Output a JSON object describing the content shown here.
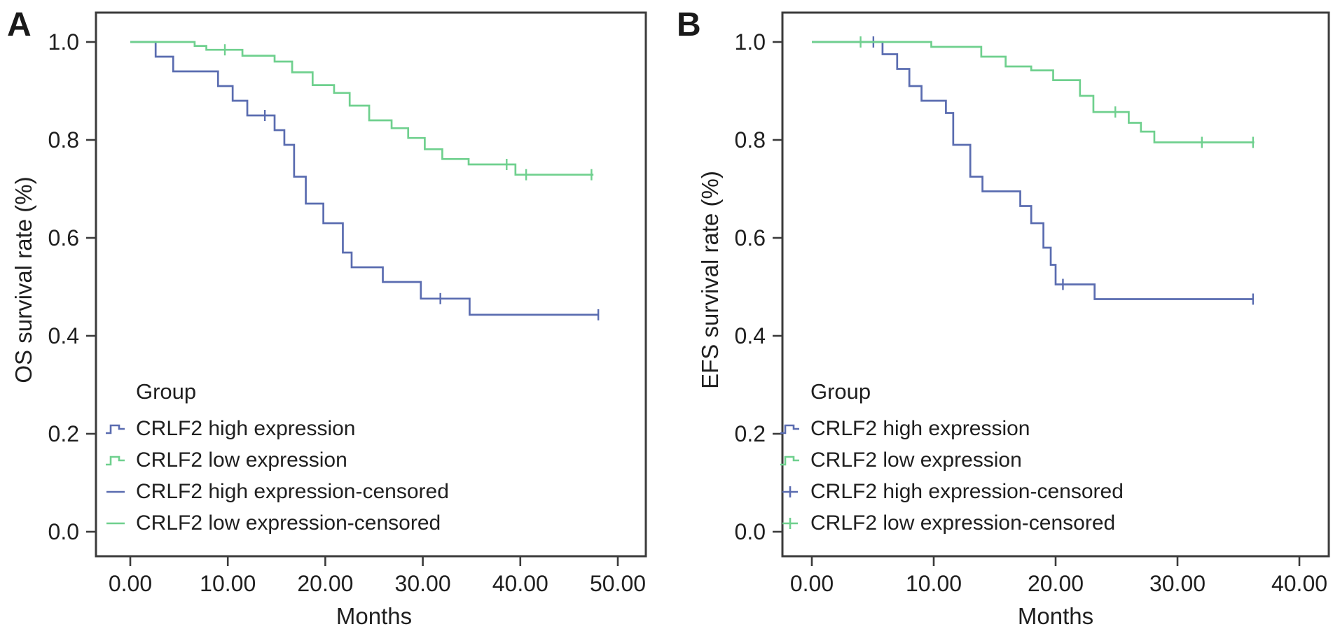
{
  "colors": {
    "high": "#5a6cb0",
    "low": "#6fd08e",
    "frame": "#3b3b3b",
    "text": "#1f1f1f"
  },
  "chart_data": [
    {
      "type": "step",
      "panel_label": "A",
      "xlabel": "Months",
      "ylabel": "OS survival rate (%)",
      "xlim": [
        0,
        50
      ],
      "ylim": [
        0.0,
        1.0
      ],
      "grid": false,
      "legend_position": "lower-left-inside",
      "xticks": [
        {
          "v": 0,
          "label": "0.00"
        },
        {
          "v": 10,
          "label": "10.00"
        },
        {
          "v": 20,
          "label": "20.00"
        },
        {
          "v": 30,
          "label": "30.00"
        },
        {
          "v": 40,
          "label": "40.00"
        },
        {
          "v": 50,
          "label": "50.00"
        }
      ],
      "yticks": [
        {
          "v": 1.0,
          "label": "1.0"
        },
        {
          "v": 0.8,
          "label": "0.8"
        },
        {
          "v": 0.6,
          "label": "0.6"
        },
        {
          "v": 0.4,
          "label": "0.4"
        },
        {
          "v": 0.2,
          "label": "0.2"
        },
        {
          "v": 0.0,
          "label": "0.0"
        }
      ],
      "legend": {
        "title": "Group",
        "entries": [
          {
            "label": "CRLF2 high expression",
            "color_key": "high",
            "symbol": "step"
          },
          {
            "label": "CRLF2 low expression",
            "color_key": "low",
            "symbol": "step"
          },
          {
            "label": "CRLF2 high expression-censored",
            "color_key": "high",
            "symbol": "line"
          },
          {
            "label": "CRLF2 low expression-censored",
            "color_key": "low",
            "symbol": "line"
          }
        ]
      },
      "series": [
        {
          "name": "CRLF2 high expression",
          "color_key": "high",
          "points": [
            [
              0,
              1.0
            ],
            [
              2.6,
              0.97
            ],
            [
              4.4,
              0.94
            ],
            [
              9.0,
              0.91
            ],
            [
              10.5,
              0.88
            ],
            [
              12.0,
              0.85
            ],
            [
              14.8,
              0.82
            ],
            [
              15.8,
              0.79
            ],
            [
              16.8,
              0.725
            ],
            [
              18.0,
              0.67
            ],
            [
              19.8,
              0.63
            ],
            [
              21.8,
              0.57
            ],
            [
              22.7,
              0.54
            ],
            [
              25.9,
              0.51
            ],
            [
              29.8,
              0.476
            ],
            [
              34.8,
              0.443
            ],
            [
              48.0,
              0.443
            ]
          ],
          "censored": [
            [
              13.8,
              0.85
            ],
            [
              31.8,
              0.476
            ],
            [
              48.0,
              0.443
            ]
          ]
        },
        {
          "name": "CRLF2 low expression",
          "color_key": "low",
          "points": [
            [
              0,
              1.0
            ],
            [
              6.6,
              0.992
            ],
            [
              7.8,
              0.984
            ],
            [
              11.5,
              0.972
            ],
            [
              14.8,
              0.96
            ],
            [
              16.6,
              0.938
            ],
            [
              18.7,
              0.912
            ],
            [
              20.9,
              0.896
            ],
            [
              22.5,
              0.87
            ],
            [
              24.5,
              0.84
            ],
            [
              26.8,
              0.824
            ],
            [
              28.5,
              0.804
            ],
            [
              30.2,
              0.781
            ],
            [
              32.0,
              0.761
            ],
            [
              34.7,
              0.75
            ],
            [
              39.5,
              0.729
            ],
            [
              47.5,
              0.729
            ]
          ],
          "censored": [
            [
              9.7,
              0.984
            ],
            [
              38.6,
              0.75
            ],
            [
              40.6,
              0.729
            ],
            [
              47.3,
              0.729
            ]
          ]
        }
      ]
    },
    {
      "type": "step",
      "panel_label": "B",
      "xlabel": "Months",
      "ylabel": "EFS survival rate (%)",
      "xlim": [
        0,
        40
      ],
      "ylim": [
        0.0,
        1.0
      ],
      "grid": false,
      "legend_position": "lower-left-inside",
      "xticks": [
        {
          "v": 0,
          "label": "0.00"
        },
        {
          "v": 10,
          "label": "10.00"
        },
        {
          "v": 20,
          "label": "20.00"
        },
        {
          "v": 30,
          "label": "30.00"
        },
        {
          "v": 40,
          "label": "40.00"
        }
      ],
      "yticks": [
        {
          "v": 1.0,
          "label": "1.0"
        },
        {
          "v": 0.8,
          "label": "0.8"
        },
        {
          "v": 0.6,
          "label": "0.6"
        },
        {
          "v": 0.4,
          "label": "0.4"
        },
        {
          "v": 0.2,
          "label": "0.2"
        },
        {
          "v": 0.0,
          "label": "0.0"
        }
      ],
      "legend": {
        "title": "Group",
        "entries": [
          {
            "label": "CRLF2 high expression",
            "color_key": "high",
            "symbol": "step"
          },
          {
            "label": "CRLF2 low expression",
            "color_key": "low",
            "symbol": "step"
          },
          {
            "label": "CRLF2 high expression-censored",
            "color_key": "high",
            "symbol": "plus"
          },
          {
            "label": "CRLF2 low expression-censored",
            "color_key": "low",
            "symbol": "plus"
          }
        ]
      },
      "series": [
        {
          "name": "CRLF2 high expression",
          "color_key": "high",
          "points": [
            [
              0,
              1.0
            ],
            [
              5.8,
              0.975
            ],
            [
              7.0,
              0.945
            ],
            [
              8.0,
              0.91
            ],
            [
              9.0,
              0.88
            ],
            [
              11.0,
              0.855
            ],
            [
              11.6,
              0.79
            ],
            [
              13.0,
              0.725
            ],
            [
              14.0,
              0.695
            ],
            [
              17.1,
              0.665
            ],
            [
              18.0,
              0.63
            ],
            [
              19.0,
              0.58
            ],
            [
              19.6,
              0.545
            ],
            [
              20.0,
              0.505
            ],
            [
              23.2,
              0.475
            ],
            [
              36.2,
              0.475
            ]
          ],
          "censored": [
            [
              5.05,
              1.0
            ],
            [
              20.6,
              0.505
            ],
            [
              36.2,
              0.475
            ]
          ]
        },
        {
          "name": "CRLF2 low expression",
          "color_key": "low",
          "points": [
            [
              0,
              1.0
            ],
            [
              9.8,
              0.99
            ],
            [
              13.9,
              0.97
            ],
            [
              15.9,
              0.95
            ],
            [
              18.0,
              0.942
            ],
            [
              19.8,
              0.922
            ],
            [
              22.0,
              0.89
            ],
            [
              23.1,
              0.857
            ],
            [
              26.0,
              0.835
            ],
            [
              27.0,
              0.817
            ],
            [
              28.1,
              0.795
            ],
            [
              36.3,
              0.795
            ]
          ],
          "censored": [
            [
              4.0,
              1.0
            ],
            [
              24.9,
              0.857
            ],
            [
              32.0,
              0.795
            ],
            [
              36.2,
              0.795
            ]
          ]
        }
      ]
    }
  ]
}
